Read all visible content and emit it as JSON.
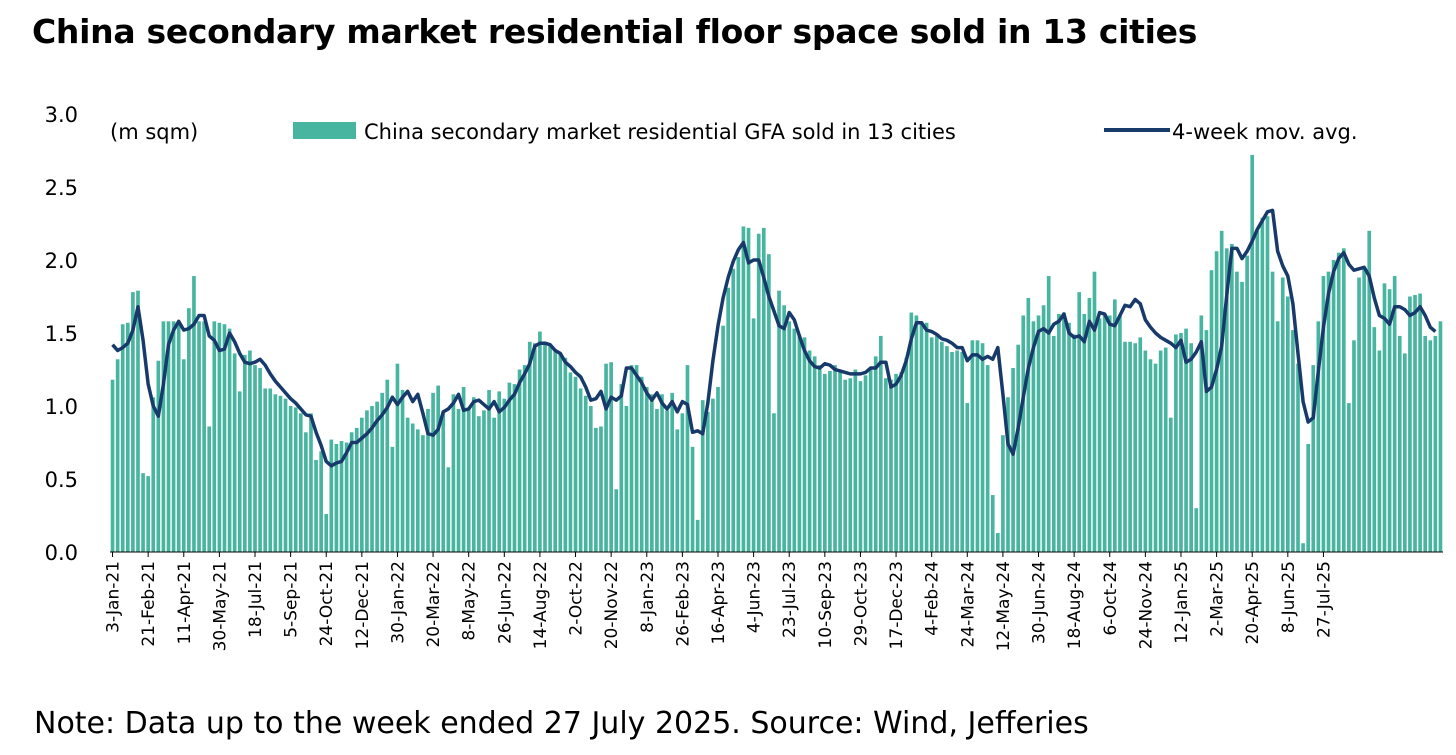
{
  "chart_data": {
    "type": "bar",
    "title": "China secondary market residential floor space sold in 13 cities",
    "unit_label": "(m sqm)",
    "ylim": [
      0,
      3.0
    ],
    "yticks": [
      "0.0",
      "0.5",
      "1.0",
      "1.5",
      "2.0",
      "2.5",
      "3.0"
    ],
    "x_tick_labels": [
      "3-Jan-21",
      "21-Feb-21",
      "11-Apr-21",
      "30-May-21",
      "18-Jul-21",
      "5-Sep-21",
      "24-Oct-21",
      "12-Dec-21",
      "30-Jan-22",
      "20-Mar-22",
      "8-May-22",
      "26-Jun-22",
      "14-Aug-22",
      "2-Oct-22",
      "20-Nov-22",
      "8-Jan-23",
      "26-Feb-23",
      "16-Apr-23",
      "4-Jun-23",
      "23-Jul-23",
      "10-Sep-23",
      "29-Oct-23",
      "17-Dec-23",
      "4-Feb-24",
      "24-Mar-24",
      "12-May-24",
      "30-Jun-24",
      "18-Aug-24",
      "6-Oct-24",
      "24-Nov-24",
      "12-Jan-25",
      "2-Mar-25",
      "20-Apr-25",
      "8-Jun-25",
      "27-Jul-25"
    ],
    "series": [
      {
        "name": "China secondary market residential GFA sold in 13 cities",
        "type": "bar",
        "color": "#48b5a1",
        "values": [
          1.18,
          1.32,
          1.56,
          1.57,
          1.78,
          1.79,
          0.54,
          0.52,
          1.06,
          1.31,
          1.58,
          1.58,
          1.58,
          1.57,
          1.32,
          1.67,
          1.89,
          1.58,
          1.58,
          0.86,
          1.58,
          1.57,
          1.56,
          1.53,
          1.36,
          1.1,
          1.35,
          1.38,
          1.28,
          1.26,
          1.12,
          1.12,
          1.08,
          1.07,
          1.05,
          1.0,
          0.99,
          0.95,
          0.82,
          0.95,
          0.63,
          0.69,
          0.26,
          0.77,
          0.74,
          0.76,
          0.75,
          0.82,
          0.85,
          0.92,
          0.97,
          1.0,
          1.03,
          1.09,
          1.18,
          0.72,
          1.29,
          1.11,
          0.92,
          0.88,
          0.84,
          0.8,
          0.98,
          1.09,
          1.14,
          0.96,
          0.58,
          1.08,
          0.98,
          1.13,
          0.99,
          1.06,
          0.93,
          0.97,
          1.11,
          0.92,
          1.1,
          1.05,
          1.16,
          1.15,
          1.25,
          1.28,
          1.44,
          1.43,
          1.51,
          1.44,
          1.42,
          1.39,
          1.36,
          1.33,
          1.23,
          1.2,
          1.12,
          1.07,
          1.0,
          0.85,
          0.86,
          1.29,
          1.3,
          0.43,
          1.15,
          1.0,
          1.28,
          1.28,
          1.2,
          1.13,
          1.08,
          0.98,
          1.08,
          0.97,
          1.09,
          0.84,
          0.95,
          1.28,
          0.72,
          0.22,
          1.04,
          0.96,
          1.05,
          1.13,
          1.55,
          1.81,
          1.94,
          2.02,
          2.23,
          2.22,
          1.6,
          2.18,
          2.22,
          2.04,
          0.95,
          1.79,
          1.69,
          1.58,
          1.53,
          1.49,
          1.47,
          1.38,
          1.34,
          1.28,
          1.22,
          1.24,
          1.28,
          1.24,
          1.18,
          1.19,
          1.25,
          1.17,
          1.21,
          1.26,
          1.34,
          1.48,
          1.19,
          1.18,
          1.22,
          1.23,
          1.33,
          1.64,
          1.62,
          1.58,
          1.57,
          1.47,
          1.48,
          1.44,
          1.41,
          1.37,
          1.38,
          1.37,
          1.02,
          1.45,
          1.45,
          1.43,
          1.28,
          0.39,
          0.13,
          0.8,
          1.06,
          1.26,
          1.42,
          1.62,
          1.74,
          1.58,
          1.62,
          1.69,
          1.89,
          1.48,
          1.63,
          1.64,
          1.57,
          1.49,
          1.78,
          1.63,
          1.74,
          1.92,
          1.6,
          1.63,
          1.62,
          1.73,
          1.62,
          1.44,
          1.44,
          1.43,
          1.47,
          1.38,
          1.32,
          1.29,
          1.38,
          1.4,
          0.92,
          1.49,
          1.5,
          1.53,
          1.43,
          0.3,
          1.62,
          1.52,
          1.93,
          2.06,
          2.2,
          2.08,
          2.11,
          1.92,
          1.85,
          2.03,
          2.72,
          2.2,
          2.29,
          2.3,
          1.92,
          1.58,
          1.88,
          1.75,
          1.52,
          1.29,
          0.06,
          0.74,
          1.28,
          1.58,
          1.89,
          1.92,
          2.0,
          2.05,
          2.08,
          1.02,
          1.45,
          1.88,
          1.94,
          2.2,
          1.54,
          1.38,
          1.84,
          1.8,
          1.89,
          1.48,
          1.36,
          1.75,
          1.76,
          1.77,
          1.48,
          1.45,
          1.48,
          1.58
        ],
        "mov_avg": [
          1.42,
          1.38,
          1.4,
          1.43,
          1.52,
          1.68,
          1.45,
          1.15,
          1.0,
          0.93,
          1.15,
          1.42,
          1.52,
          1.58,
          1.52,
          1.53,
          1.56,
          1.62,
          1.62,
          1.48,
          1.45,
          1.38,
          1.39,
          1.5,
          1.44,
          1.36,
          1.3,
          1.29,
          1.3,
          1.32,
          1.28,
          1.22,
          1.17,
          1.13,
          1.09,
          1.05,
          1.02,
          0.98,
          0.94,
          0.93,
          0.82,
          0.73,
          0.62,
          0.59,
          0.61,
          0.62,
          0.68,
          0.75,
          0.75,
          0.78,
          0.81,
          0.85,
          0.9,
          0.94,
          0.99,
          1.06,
          1.01,
          1.06,
          1.1,
          1.03,
          1.08,
          0.95,
          0.81,
          0.8,
          0.84,
          0.96,
          0.98,
          1.02,
          1.08,
          0.97,
          0.98,
          1.03,
          1.04,
          1.01,
          0.98,
          1.03,
          0.96,
          0.99,
          1.04,
          1.08,
          1.16,
          1.22,
          1.29,
          1.41,
          1.43,
          1.43,
          1.42,
          1.38,
          1.36,
          1.3,
          1.27,
          1.23,
          1.2,
          1.13,
          1.04,
          1.05,
          1.1,
          0.98,
          1.06,
          1.04,
          1.07,
          1.26,
          1.26,
          1.21,
          1.16,
          1.09,
          1.04,
          1.09,
          1.02,
          0.98,
          1.03,
          0.96,
          1.03,
          1.01,
          0.82,
          0.83,
          0.81,
          1.02,
          1.31,
          1.55,
          1.74,
          1.88,
          1.99,
          2.07,
          2.12,
          1.98,
          2.0,
          2.0,
          1.88,
          1.75,
          1.65,
          1.55,
          1.53,
          1.64,
          1.59,
          1.48,
          1.38,
          1.31,
          1.27,
          1.26,
          1.29,
          1.28,
          1.25,
          1.24,
          1.23,
          1.22,
          1.22,
          1.22,
          1.23,
          1.26,
          1.26,
          1.3,
          1.3,
          1.13,
          1.15,
          1.21,
          1.31,
          1.46,
          1.57,
          1.57,
          1.52,
          1.51,
          1.49,
          1.46,
          1.45,
          1.43,
          1.4,
          1.4,
          1.31,
          1.35,
          1.35,
          1.32,
          1.34,
          1.32,
          1.4,
          1.08,
          0.74,
          0.67,
          0.85,
          1.06,
          1.26,
          1.4,
          1.51,
          1.53,
          1.5,
          1.56,
          1.58,
          1.63,
          1.5,
          1.47,
          1.48,
          1.44,
          1.58,
          1.52,
          1.64,
          1.63,
          1.56,
          1.55,
          1.62,
          1.69,
          1.68,
          1.73,
          1.7,
          1.59,
          1.54,
          1.5,
          1.47,
          1.45,
          1.43,
          1.4,
          1.45,
          1.3,
          1.32,
          1.37,
          1.44,
          1.1,
          1.13,
          1.25,
          1.41,
          1.76,
          2.08,
          2.08,
          2.01,
          2.06,
          2.13,
          2.21,
          2.27,
          2.33,
          2.34,
          2.06,
          1.96,
          1.89,
          1.7,
          1.36,
          1.03,
          0.89,
          0.92,
          1.24,
          1.54,
          1.77,
          1.92,
          2.01,
          2.05,
          1.97,
          1.93,
          1.94,
          1.95,
          1.89,
          1.74,
          1.62,
          1.6,
          1.56,
          1.68,
          1.68,
          1.66,
          1.62,
          1.64,
          1.68,
          1.62,
          1.54,
          1.51
        ]
      },
      {
        "name": "4-week mov. avg.",
        "type": "line",
        "color": "#173a6b"
      }
    ],
    "legend": [
      "China secondary market residential GFA sold in 13 cities",
      "4-week mov. avg."
    ],
    "legend_position": "top"
  },
  "note": "Note: Data up to the week ended 27 July 2025. Source: Wind, Jefferies"
}
